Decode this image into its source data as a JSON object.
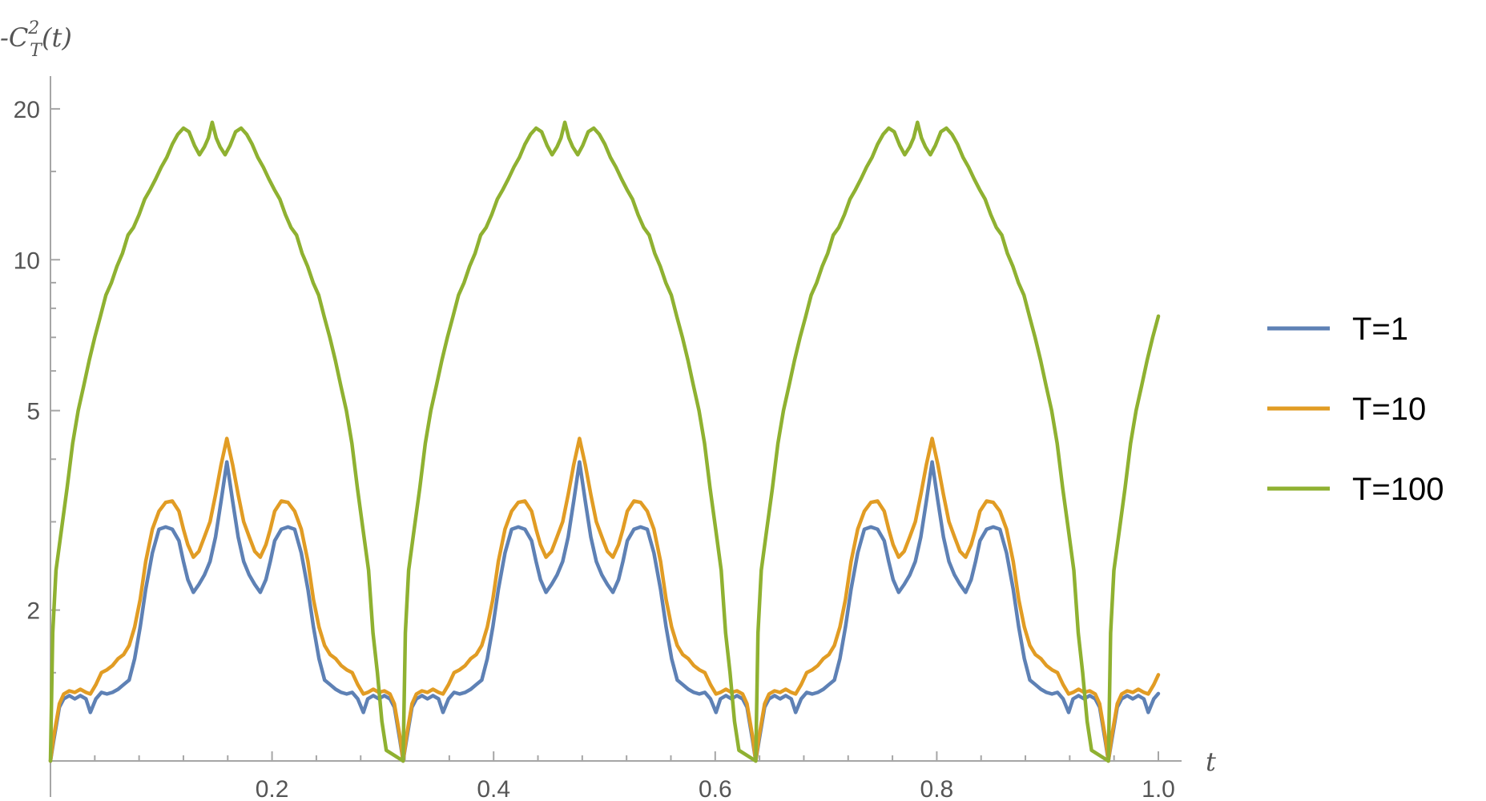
{
  "chart_data": {
    "type": "line",
    "ylabel_main": "-C",
    "ylabel_sup": "2",
    "ylabel_sub": "T",
    "ylabel_tail": "(t)",
    "xlabel": "t",
    "xlim": [
      0,
      1
    ],
    "ylim": [
      1,
      22
    ],
    "yscale": "log",
    "grid": false,
    "legend_position": "right",
    "x_ticks": [
      {
        "value": 0.2,
        "label": "0.2"
      },
      {
        "value": 0.4,
        "label": "0.4"
      },
      {
        "value": 0.6,
        "label": "0.6"
      },
      {
        "value": 0.8,
        "label": "0.8"
      },
      {
        "value": 1.0,
        "label": "1.0"
      }
    ],
    "y_ticks": [
      {
        "value": 2,
        "label": "2"
      },
      {
        "value": 5,
        "label": "5"
      },
      {
        "value": 10,
        "label": "10"
      },
      {
        "value": 20,
        "label": "20"
      }
    ],
    "period": 0.3183,
    "series": [
      {
        "name": "T=1",
        "color": "#5E81B5",
        "period_points": [
          [
            0,
            1.0
          ],
          [
            0.003,
            1.1
          ],
          [
            0.008,
            1.28
          ],
          [
            0.012,
            1.33
          ],
          [
            0.017,
            1.35
          ],
          [
            0.022,
            1.33
          ],
          [
            0.027,
            1.35
          ],
          [
            0.032,
            1.33
          ],
          [
            0.036,
            1.25
          ],
          [
            0.041,
            1.33
          ],
          [
            0.046,
            1.37
          ],
          [
            0.051,
            1.36
          ],
          [
            0.056,
            1.37
          ],
          [
            0.061,
            1.39
          ],
          [
            0.066,
            1.42
          ],
          [
            0.071,
            1.45
          ],
          [
            0.076,
            1.6
          ],
          [
            0.081,
            1.85
          ],
          [
            0.086,
            2.2
          ],
          [
            0.092,
            2.6
          ],
          [
            0.098,
            2.9
          ],
          [
            0.104,
            2.93
          ],
          [
            0.11,
            2.9
          ],
          [
            0.116,
            2.75
          ],
          [
            0.12,
            2.5
          ],
          [
            0.124,
            2.3
          ],
          [
            0.129,
            2.17
          ],
          [
            0.134,
            2.25
          ],
          [
            0.139,
            2.35
          ],
          [
            0.144,
            2.5
          ],
          [
            0.149,
            2.8
          ],
          [
            0.154,
            3.3
          ],
          [
            0.1592,
            3.95
          ],
          [
            0.1644,
            3.3
          ],
          [
            0.1694,
            2.8
          ],
          [
            0.1744,
            2.5
          ],
          [
            0.1794,
            2.35
          ],
          [
            0.1844,
            2.25
          ],
          [
            0.1894,
            2.17
          ],
          [
            0.1944,
            2.3
          ],
          [
            0.1984,
            2.5
          ],
          [
            0.2024,
            2.75
          ],
          [
            0.2084,
            2.9
          ],
          [
            0.2144,
            2.93
          ],
          [
            0.2204,
            2.9
          ],
          [
            0.2264,
            2.6
          ],
          [
            0.2324,
            2.2
          ],
          [
            0.2374,
            1.85
          ],
          [
            0.2424,
            1.6
          ],
          [
            0.2474,
            1.45
          ],
          [
            0.2524,
            1.42
          ],
          [
            0.2574,
            1.39
          ],
          [
            0.2624,
            1.37
          ],
          [
            0.2674,
            1.36
          ],
          [
            0.2724,
            1.37
          ],
          [
            0.2774,
            1.33
          ],
          [
            0.2824,
            1.25
          ],
          [
            0.2864,
            1.33
          ],
          [
            0.2914,
            1.35
          ],
          [
            0.2964,
            1.33
          ],
          [
            0.3014,
            1.35
          ],
          [
            0.3064,
            1.33
          ],
          [
            0.3104,
            1.28
          ],
          [
            0.3154,
            1.1
          ],
          [
            0.3183,
            1.0
          ]
        ]
      },
      {
        "name": "T=10",
        "color": "#E19C24",
        "period_points": [
          [
            0,
            1.0
          ],
          [
            0.003,
            1.12
          ],
          [
            0.008,
            1.3
          ],
          [
            0.012,
            1.36
          ],
          [
            0.017,
            1.38
          ],
          [
            0.022,
            1.37
          ],
          [
            0.027,
            1.39
          ],
          [
            0.032,
            1.37
          ],
          [
            0.036,
            1.36
          ],
          [
            0.041,
            1.42
          ],
          [
            0.046,
            1.5
          ],
          [
            0.051,
            1.52
          ],
          [
            0.056,
            1.55
          ],
          [
            0.061,
            1.6
          ],
          [
            0.066,
            1.63
          ],
          [
            0.071,
            1.7
          ],
          [
            0.076,
            1.85
          ],
          [
            0.081,
            2.1
          ],
          [
            0.086,
            2.5
          ],
          [
            0.092,
            2.9
          ],
          [
            0.098,
            3.15
          ],
          [
            0.104,
            3.28
          ],
          [
            0.11,
            3.3
          ],
          [
            0.116,
            3.15
          ],
          [
            0.12,
            2.9
          ],
          [
            0.124,
            2.7
          ],
          [
            0.129,
            2.55
          ],
          [
            0.134,
            2.62
          ],
          [
            0.139,
            2.8
          ],
          [
            0.144,
            3.0
          ],
          [
            0.149,
            3.4
          ],
          [
            0.154,
            3.9
          ],
          [
            0.1592,
            4.4
          ],
          [
            0.1644,
            3.9
          ],
          [
            0.1694,
            3.4
          ],
          [
            0.1744,
            3.0
          ],
          [
            0.1794,
            2.8
          ],
          [
            0.1844,
            2.62
          ],
          [
            0.1894,
            2.55
          ],
          [
            0.1944,
            2.7
          ],
          [
            0.1984,
            2.9
          ],
          [
            0.2024,
            3.15
          ],
          [
            0.2084,
            3.3
          ],
          [
            0.2144,
            3.28
          ],
          [
            0.2204,
            3.15
          ],
          [
            0.2264,
            2.9
          ],
          [
            0.2324,
            2.5
          ],
          [
            0.2374,
            2.1
          ],
          [
            0.2424,
            1.85
          ],
          [
            0.2474,
            1.7
          ],
          [
            0.2524,
            1.63
          ],
          [
            0.2574,
            1.6
          ],
          [
            0.2624,
            1.55
          ],
          [
            0.2674,
            1.52
          ],
          [
            0.2724,
            1.5
          ],
          [
            0.2774,
            1.42
          ],
          [
            0.2824,
            1.36
          ],
          [
            0.2864,
            1.37
          ],
          [
            0.2914,
            1.39
          ],
          [
            0.2964,
            1.37
          ],
          [
            0.3014,
            1.38
          ],
          [
            0.3064,
            1.36
          ],
          [
            0.3104,
            1.3
          ],
          [
            0.3154,
            1.12
          ],
          [
            0.3183,
            1.0
          ]
        ]
      },
      {
        "name": "T=100",
        "color": "#8FB131",
        "period_points": [
          [
            0,
            1.0
          ],
          [
            0.002,
            1.8
          ],
          [
            0.005,
            2.4
          ],
          [
            0.01,
            2.9
          ],
          [
            0.015,
            3.5
          ],
          [
            0.02,
            4.3
          ],
          [
            0.025,
            5.0
          ],
          [
            0.03,
            5.6
          ],
          [
            0.035,
            6.3
          ],
          [
            0.04,
            7.0
          ],
          [
            0.045,
            7.7
          ],
          [
            0.05,
            8.5
          ],
          [
            0.055,
            9.0
          ],
          [
            0.06,
            9.7
          ],
          [
            0.065,
            10.3
          ],
          [
            0.07,
            11.2
          ],
          [
            0.075,
            11.6
          ],
          [
            0.08,
            12.3
          ],
          [
            0.085,
            13.2
          ],
          [
            0.09,
            13.8
          ],
          [
            0.095,
            14.5
          ],
          [
            0.1,
            15.3
          ],
          [
            0.105,
            16.0
          ],
          [
            0.11,
            17.0
          ],
          [
            0.115,
            17.8
          ],
          [
            0.12,
            18.3
          ],
          [
            0.125,
            18.0
          ],
          [
            0.13,
            16.9
          ],
          [
            0.1345,
            16.2
          ],
          [
            0.139,
            16.8
          ],
          [
            0.1425,
            17.5
          ],
          [
            0.146,
            18.8
          ],
          [
            0.1496,
            17.5
          ],
          [
            0.1531,
            16.8
          ],
          [
            0.1576,
            16.2
          ],
          [
            0.1621,
            16.9
          ],
          [
            0.1671,
            18.0
          ],
          [
            0.1721,
            18.3
          ],
          [
            0.1771,
            17.8
          ],
          [
            0.1821,
            17.0
          ],
          [
            0.1871,
            16.0
          ],
          [
            0.1921,
            15.3
          ],
          [
            0.1971,
            14.5
          ],
          [
            0.2021,
            13.8
          ],
          [
            0.2071,
            13.2
          ],
          [
            0.2121,
            12.3
          ],
          [
            0.2171,
            11.6
          ],
          [
            0.2221,
            11.2
          ],
          [
            0.2271,
            10.3
          ],
          [
            0.2321,
            9.7
          ],
          [
            0.2371,
            9.0
          ],
          [
            0.2421,
            8.5
          ],
          [
            0.2471,
            7.7
          ],
          [
            0.2521,
            7.0
          ],
          [
            0.2571,
            6.3
          ],
          [
            0.2621,
            5.6
          ],
          [
            0.2671,
            5.0
          ],
          [
            0.2721,
            4.3
          ],
          [
            0.2771,
            3.5
          ],
          [
            0.2821,
            2.9
          ],
          [
            0.2871,
            2.4
          ],
          [
            0.2911,
            1.8
          ],
          [
            0.2951,
            1.5
          ],
          [
            0.2991,
            1.2
          ],
          [
            0.3031,
            1.05
          ],
          [
            0.3183,
            1.0
          ]
        ]
      }
    ]
  }
}
